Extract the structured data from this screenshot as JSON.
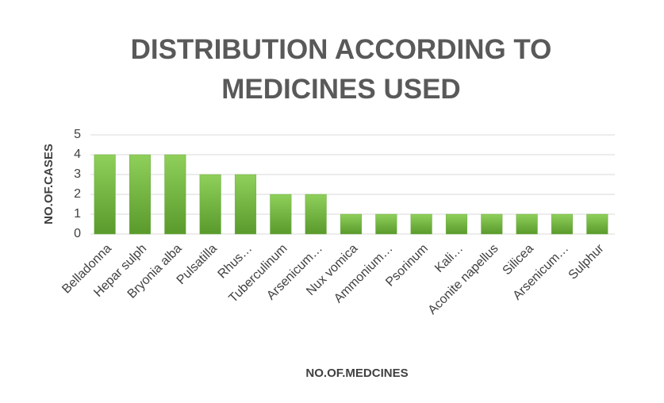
{
  "chart_data": {
    "type": "bar",
    "title": "DISTRIBUTION ACCORDING TO MEDICINES USED",
    "x_label": "NO.OF.MEDCINES",
    "y_label": "NO.OF.CASES",
    "categories": [
      "Belladonna",
      "Hepar sulph",
      "Bryonia alba",
      "Pulsatilla",
      "Rhus…",
      "Tuberculinum",
      "Arsenicum…",
      "Nux vomica",
      "Ammonium…",
      "Psorinum",
      "Kali…",
      "Aconite napellus",
      "Silicea",
      "Arsenicum…",
      "Sulphur"
    ],
    "values": [
      4,
      4,
      4,
      3,
      3,
      2,
      2,
      1,
      1,
      1,
      1,
      1,
      1,
      1,
      1
    ],
    "color": "#70ad47",
    "ylim": [
      0,
      5
    ],
    "yticks": [
      0,
      1,
      2,
      3,
      4,
      5
    ],
    "grid": true
  }
}
